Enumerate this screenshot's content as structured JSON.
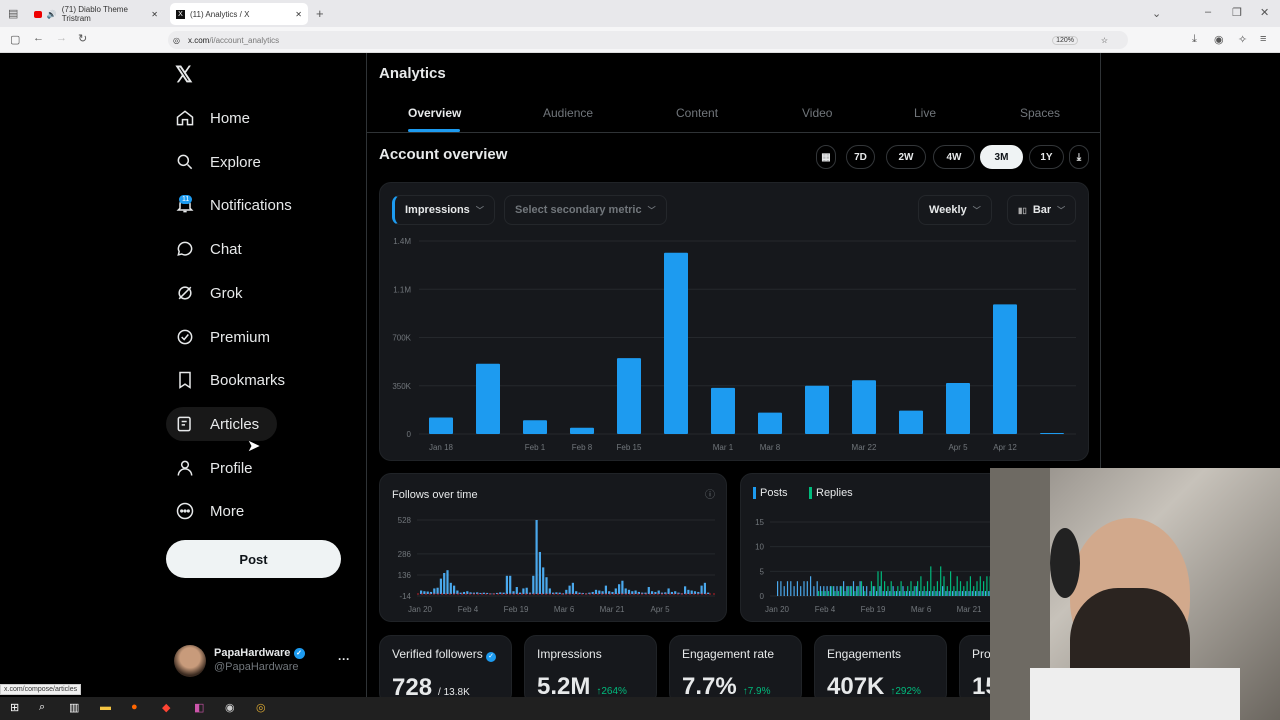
{
  "browser": {
    "tabs": [
      {
        "title": "(71) Diablo Theme Tristram",
        "icon": "youtube-icon"
      },
      {
        "title": "(11) Analytics / X",
        "icon": "x-icon"
      }
    ],
    "url_host": "x.com",
    "url_path": "/i/account_analytics",
    "zoom": "120%",
    "status_url": "x.com/compose/articles"
  },
  "sidebar": {
    "items": [
      {
        "label": "Home",
        "icon": "home-icon"
      },
      {
        "label": "Explore",
        "icon": "search-icon"
      },
      {
        "label": "Notifications",
        "icon": "bell-icon",
        "badge": "11"
      },
      {
        "label": "Chat",
        "icon": "chat-icon"
      },
      {
        "label": "Grok",
        "icon": "grok-icon"
      },
      {
        "label": "Premium",
        "icon": "verified-icon"
      },
      {
        "label": "Bookmarks",
        "icon": "bookmark-icon"
      },
      {
        "label": "Articles",
        "icon": "article-icon"
      },
      {
        "label": "Profile",
        "icon": "person-icon"
      },
      {
        "label": "More",
        "icon": "more-circle-icon"
      }
    ],
    "post_label": "Post",
    "user": {
      "name": "PapaHardware",
      "handle": "@PapaHardware"
    }
  },
  "main": {
    "title": "Analytics",
    "tabs": [
      "Overview",
      "Audience",
      "Content",
      "Video",
      "Live",
      "Spaces"
    ],
    "active_tab": "Overview",
    "section_title": "Account overview",
    "ranges": [
      "7D",
      "2W",
      "4W",
      "3M",
      "1Y"
    ],
    "active_range": "3M",
    "primary_metric": "Impressions",
    "secondary_metric_placeholder": "Select secondary metric",
    "interval": "Weekly",
    "chart_type": "Bar",
    "follows_title": "Follows over time",
    "posts_legend": [
      "Posts",
      "Replies"
    ],
    "stats": [
      {
        "label": "Verified followers",
        "value": "728",
        "sub": "/ 13.8K"
      },
      {
        "label": "Impressions",
        "value": "5.2M",
        "change": "↑264%"
      },
      {
        "label": "Engagement rate",
        "value": "7.7%",
        "change": "↑7.9%"
      },
      {
        "label": "Engagements",
        "value": "407K",
        "change": "↑292%"
      },
      {
        "label": "Prof",
        "value": "15"
      }
    ]
  },
  "colors": {
    "accent": "#1d9bf0",
    "replies": "#00ba7c",
    "card": "#16181c",
    "positive": "#00ba7c"
  },
  "chart_data": [
    {
      "type": "bar",
      "ylabel": "",
      "xlabel": "",
      "ylim": [
        0,
        1400000
      ],
      "yticks": [
        "0",
        "350K",
        "700K",
        "1.1M",
        "1.4M"
      ],
      "ytick_values": [
        0,
        350000,
        700000,
        1050000,
        1400000
      ],
      "grid": true,
      "categories": [
        "Jan 18",
        "",
        "Feb 1",
        "Feb 8",
        "Feb 15",
        "",
        "Mar 1",
        "Mar 8",
        "",
        "Mar 22",
        "",
        "Apr 5",
        "Apr 12",
        ""
      ],
      "values": [
        120000,
        510000,
        100000,
        45000,
        550000,
        1315000,
        335000,
        155000,
        350000,
        390000,
        170000,
        370000,
        940000,
        7000
      ]
    },
    {
      "type": "bar",
      "title": "Follows over time",
      "ylim": [
        -14,
        528
      ],
      "yticks": [
        "-14",
        "136",
        "286",
        "528"
      ],
      "ytick_values": [
        -14,
        136,
        286,
        528
      ],
      "xticks": [
        "Jan 20",
        "Feb 4",
        "Feb 19",
        "Mar 6",
        "Mar 21",
        "Apr 5"
      ],
      "values": [
        25,
        20,
        18,
        15,
        40,
        45,
        110,
        150,
        170,
        80,
        60,
        25,
        10,
        15,
        20,
        12,
        10,
        12,
        8,
        10,
        8,
        5,
        5,
        8,
        12,
        10,
        130,
        130,
        20,
        50,
        10,
        40,
        45,
        10,
        130,
        528,
        300,
        190,
        120,
        40,
        10,
        12,
        10,
        5,
        30,
        60,
        80,
        20,
        10,
        8,
        5,
        10,
        15,
        30,
        25,
        20,
        60,
        20,
        15,
        40,
        70,
        95,
        40,
        30,
        20,
        25,
        15,
        10,
        10,
        50,
        20,
        15,
        25,
        10,
        12,
        40,
        15,
        20,
        10,
        5,
        55,
        30,
        25,
        20,
        15,
        60,
        80,
        10
      ]
    },
    {
      "type": "bar",
      "ylim": [
        0,
        15
      ],
      "yticks": [
        "0",
        "5",
        "10",
        "15"
      ],
      "ytick_values": [
        0,
        5,
        10,
        15
      ],
      "xticks": [
        "Jan 20",
        "Feb 4",
        "Feb 19",
        "Mar 6",
        "Mar 21"
      ],
      "series": [
        {
          "name": "Posts",
          "values": [
            3,
            3,
            2,
            3,
            3,
            2,
            3,
            2,
            3,
            3,
            4,
            2,
            3,
            2,
            2,
            2,
            2,
            2,
            2,
            2,
            3,
            2,
            2,
            3,
            2,
            3,
            2,
            2,
            1,
            2,
            1,
            2,
            1,
            1,
            1,
            2,
            1,
            1,
            2,
            1,
            1,
            1,
            2,
            1,
            1,
            1,
            1,
            1,
            1,
            1,
            2,
            1,
            1,
            1,
            1,
            1,
            1,
            1,
            1,
            1,
            1,
            1,
            1,
            1,
            1,
            1,
            1,
            1,
            1,
            1
          ]
        },
        {
          "name": "Replies",
          "values": [
            0,
            0,
            0,
            0,
            0,
            0,
            0,
            0,
            0,
            0,
            0,
            0,
            1,
            1,
            1,
            1,
            2,
            1,
            1,
            2,
            1,
            2,
            2,
            1,
            2,
            3,
            1,
            0,
            3,
            2,
            5,
            5,
            3,
            2,
            3,
            1,
            2,
            3,
            1,
            2,
            3,
            2,
            3,
            4,
            2,
            3,
            6,
            2,
            3,
            6,
            4,
            2,
            5,
            2,
            4,
            3,
            2,
            3,
            4,
            2,
            3,
            4,
            3,
            4,
            4,
            3,
            3,
            4,
            3,
            4
          ]
        }
      ]
    }
  ]
}
